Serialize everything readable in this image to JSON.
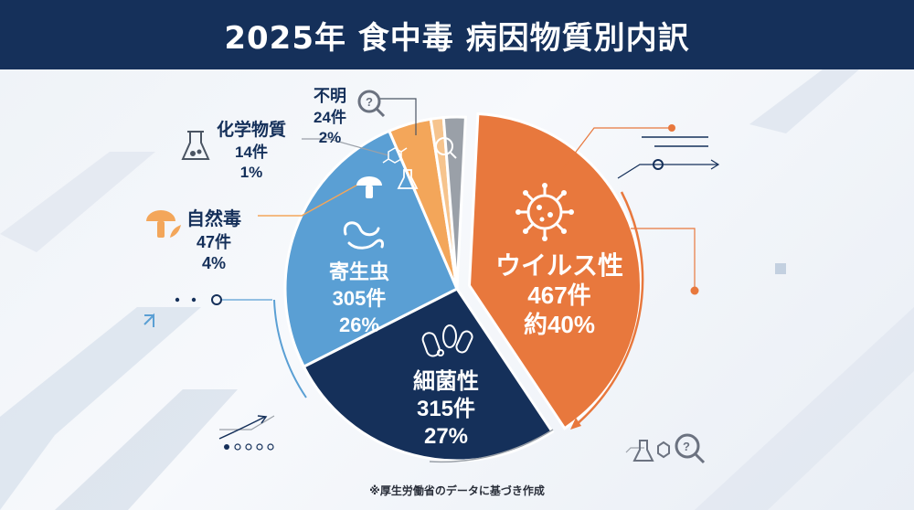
{
  "header": {
    "title": "2025年 食中毒 病因物質別内訳"
  },
  "source_note": "※厚生労働省のデータに基づき作成",
  "colors": {
    "header_bg": "#15305a",
    "virus": "#e8783d",
    "bacteria": "#15305a",
    "parasite": "#5a9fd4",
    "natural_toxin": "#f3a65a",
    "chemical": "#f6c48e",
    "unknown": "#9aa0a8"
  },
  "chart_data": {
    "type": "pie",
    "title": "2025年 食中毒 病因物質別内訳",
    "categories": [
      "ウイルス性",
      "細菌性",
      "寄生虫",
      "自然毒",
      "化学物質",
      "不明"
    ],
    "values": [
      467,
      315,
      305,
      47,
      14,
      24
    ],
    "units": "件",
    "percent_labels": [
      "約40%",
      "27%",
      "26%",
      "4%",
      "1%",
      "2%"
    ],
    "count_labels": [
      "467件",
      "315件",
      "305件",
      "47件",
      "14件",
      "24件"
    ],
    "icons": [
      "virus-icon",
      "bacteria-icon",
      "parasite-icon",
      "mushroom-icon",
      "flask-icon",
      "magnifier-icon"
    ]
  }
}
